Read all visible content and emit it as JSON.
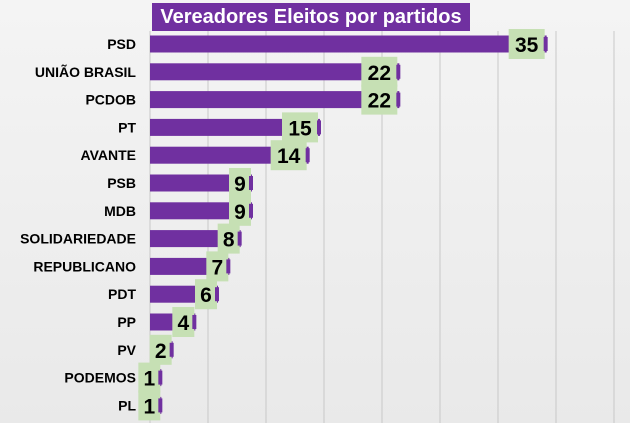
{
  "chart_data": {
    "type": "bar",
    "orientation": "horizontal",
    "title": "Vereadores Eleitos por partidos",
    "categories": [
      "PSD",
      "UNIÃO BRASIL",
      "PCDOB",
      "PT",
      "AVANTE",
      "PSB",
      "MDB",
      "SOLIDARIEDADE",
      "REPUBLICANO",
      "PDT",
      "PP",
      "PV",
      "PODEMOS",
      "PL"
    ],
    "values": [
      35,
      22,
      22,
      15,
      14,
      9,
      9,
      8,
      7,
      6,
      4,
      2,
      1,
      1
    ],
    "xlim": [
      0,
      36
    ],
    "grid": true,
    "legend": "none",
    "colors": {
      "bar": "#7030a0",
      "label_bg": "#c6e0b4",
      "title_bg": "#7030a0",
      "title_text": "#ffffff",
      "grid": "#c8c8c8"
    }
  }
}
